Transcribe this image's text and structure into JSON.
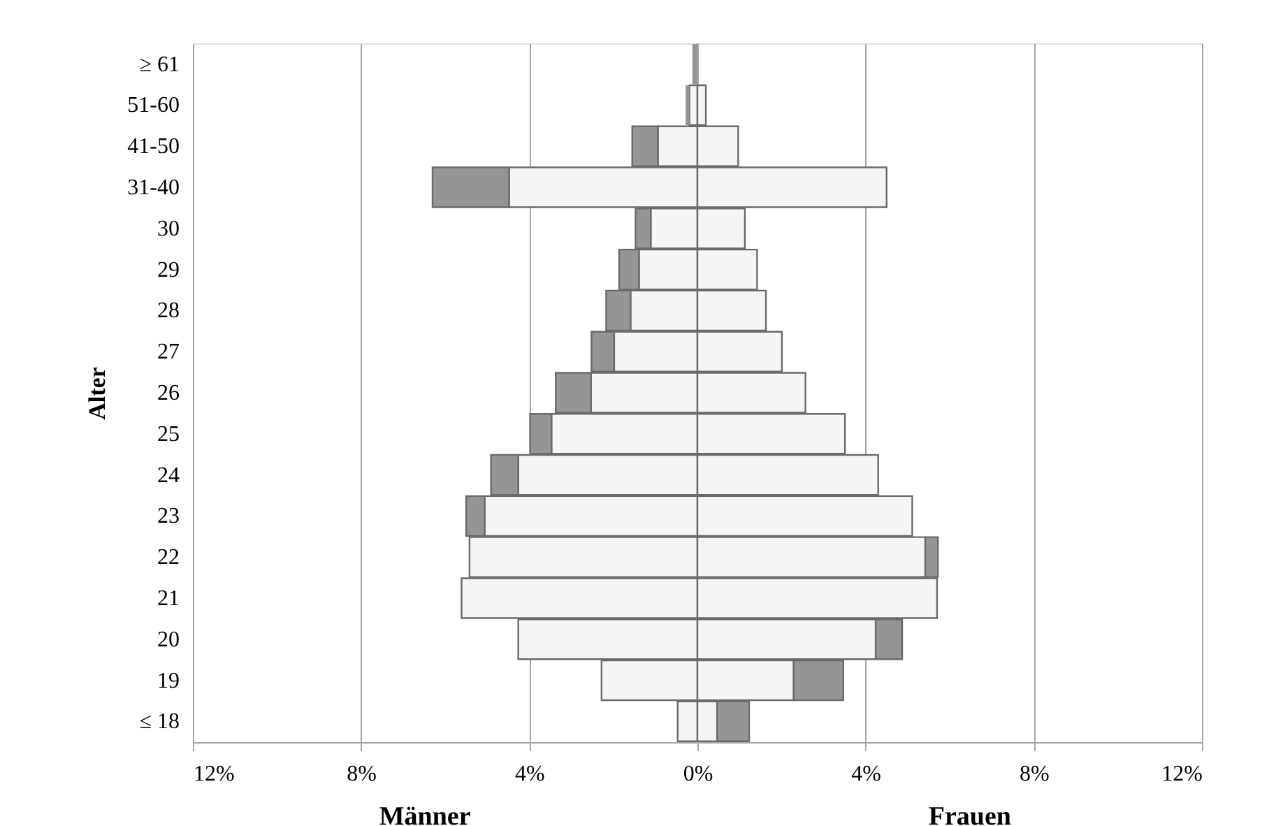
{
  "chart_data": {
    "type": "bar",
    "orientation": "horizontal",
    "stacked": true,
    "categories": [
      "≥ 61",
      "51-60",
      "41-50",
      "31-40",
      "30",
      "29",
      "28",
      "27",
      "26",
      "25",
      "24",
      "23",
      "22",
      "21",
      "20",
      "19",
      "≤ 18"
    ],
    "series": [
      {
        "color": "#f4f5f4",
        "values": [
          null,
          -0.19,
          -0.94,
          -4.48,
          -1.11,
          -1.39,
          -1.59,
          -1.98,
          -2.53,
          -3.47,
          -4.26,
          -5.06,
          -5.42,
          -5.61,
          -4.26,
          -2.28,
          -0.47
        ]
      },
      {
        "color": "#959497",
        "values": [
          -0.12,
          -0.09,
          -0.61,
          -1.82,
          -0.36,
          -0.47,
          -0.58,
          -0.54,
          -0.84,
          -0.51,
          -0.65,
          -0.44,
          null,
          null,
          null,
          null,
          null
        ]
      },
      {
        "color": "#f4f5f4",
        "values": [
          null,
          0.2,
          0.97,
          4.5,
          1.13,
          1.42,
          1.63,
          2.01,
          2.57,
          3.51,
          4.3,
          5.11,
          5.42,
          5.7,
          4.24,
          2.29,
          0.47
        ]
      },
      {
        "color": "#959497",
        "values": [
          null,
          null,
          null,
          null,
          null,
          null,
          null,
          null,
          null,
          null,
          null,
          null,
          0.3,
          null,
          0.63,
          1.18,
          0.76
        ]
      }
    ],
    "xlim": [
      -12,
      12
    ],
    "xticks": [
      {
        "value": -12,
        "label": "12%"
      },
      {
        "value": -8,
        "label": "8%"
      },
      {
        "value": -4,
        "label": "4%"
      },
      {
        "value": 0,
        "label": "0%"
      },
      {
        "value": 4,
        "label": "4%"
      },
      {
        "value": 8,
        "label": "8%"
      },
      {
        "value": 12,
        "label": "12%"
      }
    ],
    "ylabel": "Alter",
    "annotations": [
      "Männer",
      "Frauen"
    ],
    "grid": "x"
  }
}
